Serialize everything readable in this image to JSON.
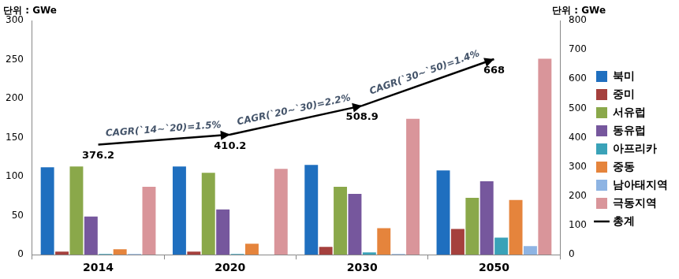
{
  "chart_data": {
    "type": "bar",
    "y_label": "단위 : GWe",
    "y2_label": "단위 : GWe",
    "categories": [
      "2014",
      "2020",
      "2030",
      "2050"
    ],
    "series": [
      {
        "name": "북미",
        "color": "#1f6fbf",
        "values": [
          112,
          113,
          115,
          108
        ]
      },
      {
        "name": "중미",
        "color": "#a5403d",
        "values": [
          4,
          4,
          10,
          33
        ]
      },
      {
        "name": "서유럽",
        "color": "#8aa84a",
        "values": [
          113,
          105,
          87,
          73
        ]
      },
      {
        "name": "동유럽",
        "color": "#76579d",
        "values": [
          49,
          58,
          78,
          94
        ]
      },
      {
        "name": "아프리카",
        "color": "#3aa2b8",
        "values": [
          1,
          1,
          3,
          22
        ]
      },
      {
        "name": "중동",
        "color": "#e5843c",
        "values": [
          7,
          14,
          34,
          70
        ]
      },
      {
        "name": "남아태지역",
        "color": "#8eb4e3",
        "values": [
          1,
          0,
          1,
          11
        ]
      },
      {
        "name": "극동지역",
        "color": "#d9959a",
        "values": [
          87,
          110,
          174,
          251
        ]
      },
      {
        "name": "총계",
        "type": "line",
        "axis": "y2",
        "color": "#000000",
        "marker": "arrow",
        "data_labels": true,
        "values": [
          376.2,
          410.2,
          508.9,
          668
        ]
      }
    ],
    "annotations": [
      "CAGR(`14~`20)=1.5%",
      "CAGR(`20~`30)=2.2%",
      "CAGR(`30~`50)=1.4%"
    ],
    "ylim": [
      0,
      300
    ],
    "yticks": [
      0,
      50,
      100,
      150,
      200,
      250,
      300
    ],
    "y2lim": [
      0,
      800
    ],
    "y2ticks": [
      0,
      100,
      200,
      300,
      400,
      500,
      600,
      700,
      800
    ],
    "grid": false,
    "legend": "right"
  }
}
